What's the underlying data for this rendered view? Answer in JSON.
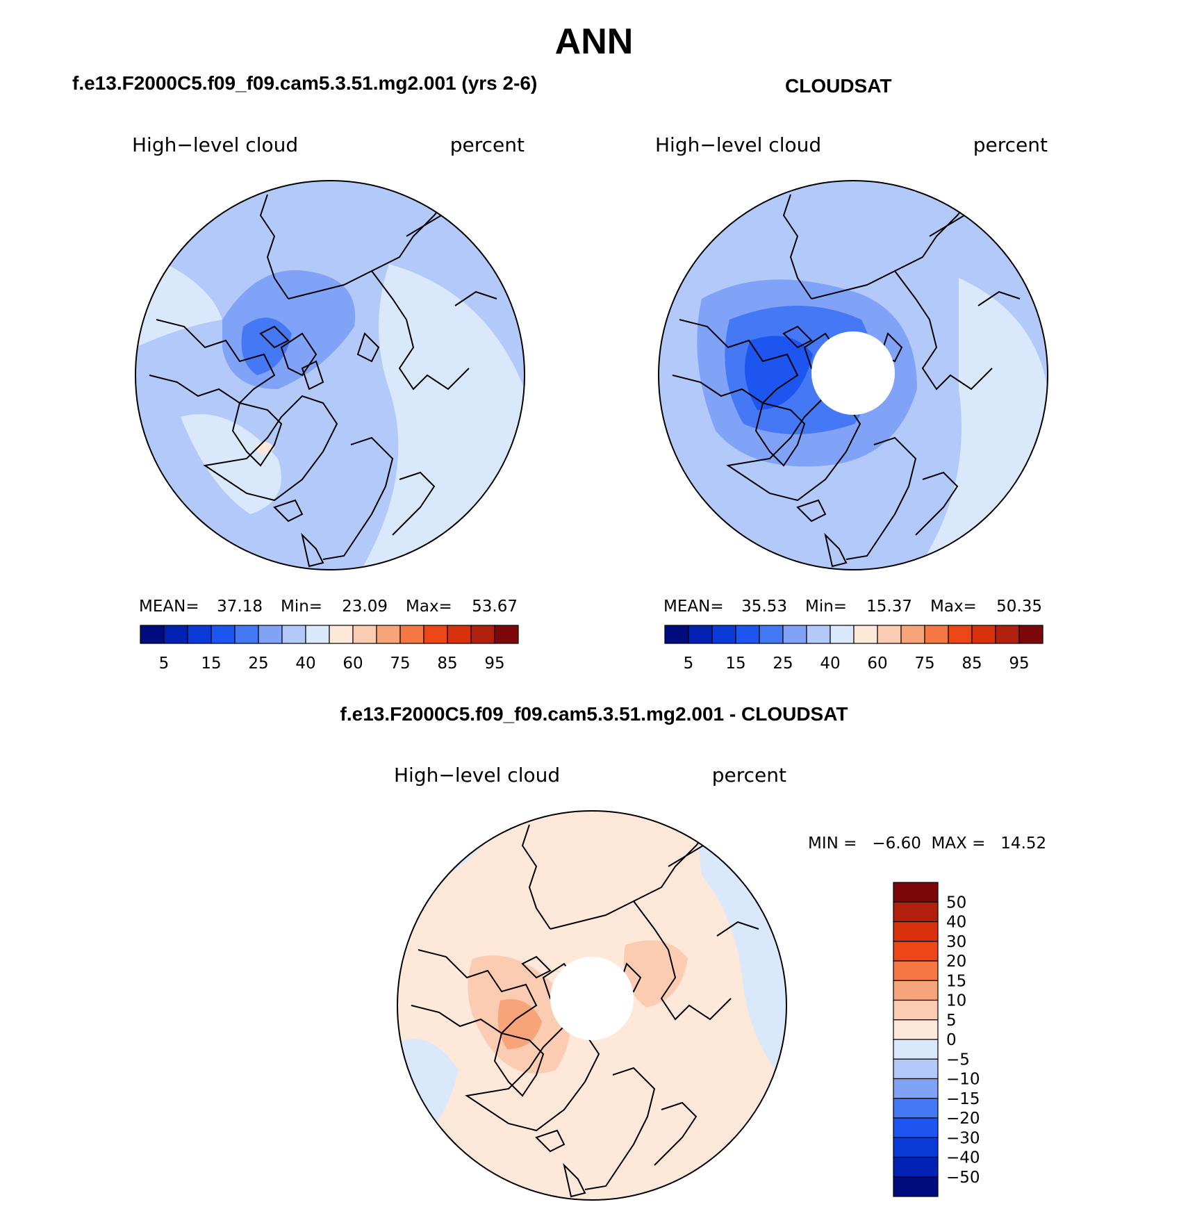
{
  "title": "ANN",
  "palettes": {
    "abs": [
      "#000C7D",
      "#0021B2",
      "#0A3BD9",
      "#1D55F0",
      "#4578F5",
      "#80A3F8",
      "#B2C9FA",
      "#D9E8FB",
      "#FDE8D9",
      "#FBCBB2",
      "#F7A47A",
      "#F47744",
      "#EE4717",
      "#D9310B",
      "#B0200C",
      "#7D0809"
    ],
    "diff": [
      "#000C7D",
      "#0021B2",
      "#0A3BD9",
      "#1D55F0",
      "#4578F5",
      "#80A3F8",
      "#B2C9FA",
      "#D9E8FB",
      "#FDE8D9",
      "#FBCBB2",
      "#F7A47A",
      "#F47744",
      "#EE4717",
      "#D9310B",
      "#B0200C",
      "#7D0809"
    ],
    "coast": "#000000"
  },
  "panels": {
    "model": {
      "case_title": "f.e13.F2000C5.f09_f09.cam5.3.51.mg2.001 (yrs 2-6)",
      "variable": "High−level cloud",
      "units": "percent",
      "mean_label": "MEAN=",
      "mean": "37.18",
      "min_label": "Min=",
      "min": "23.09",
      "max_label": "Max=",
      "max": "53.67"
    },
    "obs": {
      "case_title": "CLOUDSAT",
      "variable": "High−level cloud",
      "units": "percent",
      "mean_label": "MEAN=",
      "mean": "35.53",
      "min_label": "Min=",
      "min": "15.37",
      "max_label": "Max=",
      "max": "50.35"
    },
    "diff": {
      "case_title": "f.e13.F2000C5.f09_f09.cam5.3.51.mg2.001 - CLOUDSAT",
      "variable": "High−level cloud",
      "units": "percent",
      "minmax_text": "MIN =   −6.60  MAX =   14.52"
    }
  },
  "chart_data": [
    {
      "type": "heatmap",
      "projection": "north polar stereographic",
      "title": "f.e13.F2000C5.f09_f09.cam5.3.51.mg2.001 (yrs 2-6)",
      "variable": "High−level cloud",
      "units": "percent",
      "mean": 37.18,
      "min": 23.09,
      "max": 53.67,
      "colorbar": {
        "orientation": "horizontal",
        "levels": [
          5,
          15,
          25,
          40,
          60,
          75,
          85,
          95
        ]
      }
    },
    {
      "type": "heatmap",
      "projection": "north polar stereographic",
      "title": "CLOUDSAT",
      "variable": "High−level cloud",
      "units": "percent",
      "mean": 35.53,
      "min": 15.37,
      "max": 50.35,
      "missing_region": "pole",
      "colorbar": {
        "orientation": "horizontal",
        "levels": [
          5,
          15,
          25,
          40,
          60,
          75,
          85,
          95
        ]
      }
    },
    {
      "type": "heatmap",
      "projection": "north polar stereographic",
      "title": "f.e13.F2000C5.f09_f09.cam5.3.51.mg2.001 - CLOUDSAT",
      "variable": "High−level cloud",
      "units": "percent",
      "min": -6.6,
      "max": 14.52,
      "missing_region": "pole",
      "colorbar": {
        "orientation": "vertical",
        "levels": [
          50,
          40,
          30,
          20,
          15,
          10,
          5,
          0,
          -5,
          -10,
          -15,
          -20,
          -30,
          -40,
          -50
        ]
      }
    }
  ],
  "colorbar_labels": {
    "abs": [
      "5",
      "15",
      "25",
      "40",
      "60",
      "75",
      "85",
      "95"
    ],
    "diff": [
      "50",
      "40",
      "30",
      "20",
      "15",
      "10",
      "5",
      "0",
      "−5",
      "−10",
      "−15",
      "−20",
      "−30",
      "−40",
      "−50"
    ]
  }
}
